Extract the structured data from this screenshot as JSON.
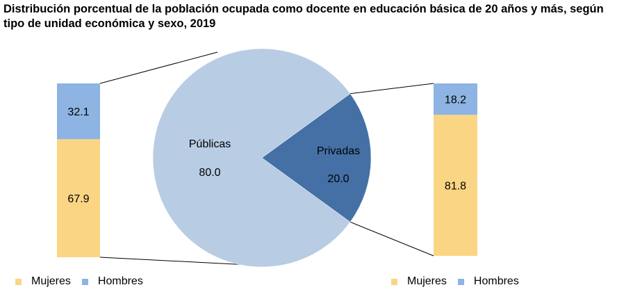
{
  "chart_data": {
    "type": "pie",
    "title": "Distribución porcentual de la población ocupada como docente en educación básica de 20 años y más, según tipo de unidad económica y sexo, 2019",
    "pie": {
      "slices": [
        {
          "name": "Públicas",
          "value": 80.0,
          "value_label": "80.0",
          "color": "#b8cce4"
        },
        {
          "name": "Privadas",
          "value": 20.0,
          "value_label": "20.0",
          "color": "#4470a6"
        }
      ]
    },
    "bars": [
      {
        "links_to": "Públicas",
        "segments": [
          {
            "name": "Mujeres",
            "value": 67.9,
            "label": "67.9"
          },
          {
            "name": "Hombres",
            "value": 32.1,
            "label": "32.1"
          }
        ]
      },
      {
        "links_to": "Privadas",
        "segments": [
          {
            "name": "Mujeres",
            "value": 81.8,
            "label": "81.8"
          },
          {
            "name": "Hombres",
            "value": 18.2,
            "label": "18.2"
          }
        ]
      }
    ],
    "legend": {
      "position": "bottom",
      "items": [
        {
          "name": "Mujeres",
          "color": "#fad584"
        },
        {
          "name": "Hombres",
          "color": "#8db4e2"
        }
      ]
    }
  }
}
